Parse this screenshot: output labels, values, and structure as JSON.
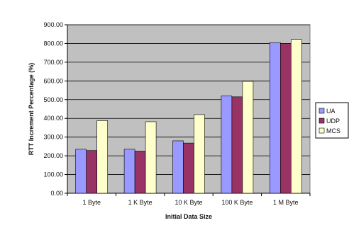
{
  "chart_data": {
    "type": "bar",
    "title": "",
    "xlabel": "Initial Data Size",
    "ylabel": "RTT Increment Percentage (%)",
    "ylim": [
      0,
      900
    ],
    "yticks": [
      "0.00",
      "100.00",
      "200.00",
      "300.00",
      "400.00",
      "500.00",
      "600.00",
      "700.00",
      "800.00",
      "900.00"
    ],
    "categories": [
      "1 Byte",
      "1 K Byte",
      "10 K Byte",
      "100 K Byte",
      "1 M Byte"
    ],
    "series": [
      {
        "name": "UA",
        "color": "#9999ff",
        "values": [
          235,
          235,
          280,
          520,
          805
        ]
      },
      {
        "name": "UDP",
        "color": "#993366",
        "values": [
          228,
          225,
          268,
          515,
          800
        ]
      },
      {
        "name": "MCS",
        "color": "#ffffcc",
        "values": [
          388,
          382,
          420,
          598,
          822
        ]
      }
    ],
    "grid": true,
    "plot_background": "#c0c0c0",
    "legend_position": "right"
  }
}
